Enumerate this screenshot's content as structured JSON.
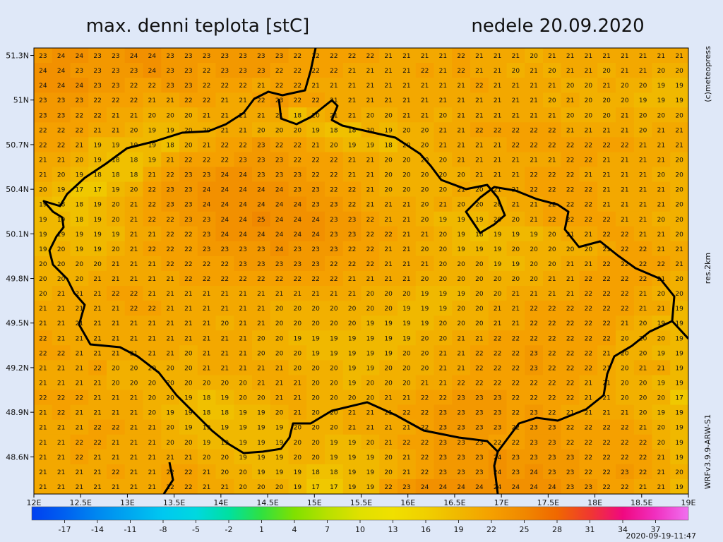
{
  "header": {
    "title": "max. denni teplota [stC]",
    "date": "nedele 20.09.2020"
  },
  "side_labels": {
    "copyright": "(c)meteopress",
    "resolution": "res.2km",
    "model": "WRFv3.9.9-ARW-S1"
  },
  "timestamp": "2020-09-19-11:47",
  "map": {
    "xlim": [
      12,
      19
    ],
    "ylim": [
      48.35,
      51.35
    ],
    "xticks": [
      {
        "value": 12,
        "label": "12E"
      },
      {
        "value": 12.5,
        "label": "12.5E"
      },
      {
        "value": 13,
        "label": "13E"
      },
      {
        "value": 13.5,
        "label": "13.5E"
      },
      {
        "value": 14,
        "label": "14E"
      },
      {
        "value": 14.5,
        "label": "14.5E"
      },
      {
        "value": 15,
        "label": "15E"
      },
      {
        "value": 15.5,
        "label": "15.5E"
      },
      {
        "value": 16,
        "label": "16E"
      },
      {
        "value": 16.5,
        "label": "16.5E"
      },
      {
        "value": 17,
        "label": "17E"
      },
      {
        "value": 17.5,
        "label": "17.5E"
      },
      {
        "value": 18,
        "label": "18E"
      },
      {
        "value": 18.5,
        "label": "18.5E"
      },
      {
        "value": 19,
        "label": "19E"
      }
    ],
    "yticks": [
      {
        "value": 51.3,
        "label": "51.3N"
      },
      {
        "value": 51,
        "label": "51N"
      },
      {
        "value": 50.7,
        "label": "50.7N"
      },
      {
        "value": 50.4,
        "label": "50.4N"
      },
      {
        "value": 50.1,
        "label": "50.1N"
      },
      {
        "value": 49.8,
        "label": "49.8N"
      },
      {
        "value": 49.5,
        "label": "49.5N"
      },
      {
        "value": 49.2,
        "label": "49.2N"
      },
      {
        "value": 48.9,
        "label": "48.9N"
      },
      {
        "value": 48.6,
        "label": "48.6N"
      }
    ],
    "grid": [
      [
        23,
        24,
        24,
        23,
        23,
        24,
        24,
        23,
        23,
        23,
        23,
        23,
        23,
        23,
        22,
        22,
        22,
        22,
        22,
        21,
        21,
        21,
        21,
        22,
        21,
        21,
        21,
        20,
        21,
        21,
        21,
        21,
        21,
        21,
        21,
        21
      ],
      [
        24,
        24,
        23,
        23,
        23,
        23,
        24,
        23,
        23,
        22,
        23,
        23,
        23,
        22,
        22,
        22,
        22,
        21,
        21,
        21,
        21,
        22,
        21,
        22,
        21,
        21,
        20,
        21,
        20,
        21,
        21,
        20,
        21,
        21,
        20,
        20
      ],
      [
        24,
        24,
        24,
        23,
        23,
        22,
        22,
        23,
        23,
        22,
        22,
        22,
        21,
        22,
        22,
        21,
        21,
        21,
        21,
        21,
        21,
        21,
        21,
        21,
        22,
        21,
        21,
        21,
        21,
        20,
        20,
        21,
        20,
        20,
        19,
        19
      ],
      [
        23,
        23,
        23,
        22,
        22,
        22,
        21,
        21,
        22,
        22,
        21,
        21,
        22,
        23,
        22,
        22,
        21,
        21,
        21,
        21,
        21,
        21,
        21,
        21,
        21,
        21,
        21,
        21,
        20,
        21,
        20,
        20,
        20,
        19,
        19,
        19
      ],
      [
        23,
        23,
        22,
        22,
        21,
        21,
        20,
        20,
        20,
        21,
        21,
        21,
        21,
        21,
        18,
        20,
        21,
        21,
        20,
        20,
        21,
        21,
        20,
        21,
        21,
        21,
        21,
        21,
        21,
        20,
        20,
        20,
        21,
        20,
        20,
        20
      ],
      [
        22,
        22,
        22,
        21,
        21,
        20,
        19,
        19,
        20,
        20,
        21,
        21,
        20,
        20,
        20,
        19,
        18,
        18,
        20,
        19,
        20,
        20,
        21,
        21,
        22,
        22,
        22,
        22,
        22,
        21,
        21,
        21,
        21,
        20,
        21,
        21
      ],
      [
        22,
        22,
        21,
        19,
        19,
        19,
        19,
        18,
        20,
        21,
        22,
        22,
        23,
        22,
        22,
        21,
        20,
        19,
        19,
        18,
        20,
        20,
        21,
        21,
        21,
        21,
        22,
        22,
        22,
        22,
        22,
        22,
        22,
        21,
        21,
        21
      ],
      [
        21,
        21,
        20,
        19,
        18,
        18,
        19,
        21,
        22,
        22,
        22,
        23,
        23,
        23,
        22,
        22,
        22,
        21,
        21,
        20,
        20,
        20,
        20,
        21,
        21,
        21,
        21,
        21,
        21,
        22,
        22,
        21,
        21,
        21,
        21,
        20
      ],
      [
        21,
        20,
        19,
        18,
        18,
        18,
        21,
        22,
        23,
        23,
        24,
        24,
        23,
        23,
        23,
        22,
        22,
        21,
        21,
        20,
        20,
        20,
        20,
        20,
        21,
        21,
        21,
        22,
        22,
        22,
        21,
        21,
        21,
        21,
        20,
        20
      ],
      [
        20,
        19,
        17,
        17,
        19,
        20,
        22,
        23,
        23,
        24,
        24,
        24,
        24,
        24,
        23,
        23,
        22,
        22,
        21,
        20,
        20,
        20,
        20,
        21,
        20,
        21,
        21,
        22,
        22,
        22,
        22,
        21,
        21,
        21,
        21,
        20
      ],
      [
        19,
        18,
        18,
        19,
        20,
        21,
        22,
        23,
        23,
        24,
        24,
        24,
        24,
        24,
        24,
        23,
        23,
        22,
        21,
        21,
        21,
        20,
        21,
        20,
        20,
        20,
        21,
        21,
        22,
        22,
        22,
        21,
        21,
        21,
        21,
        20
      ],
      [
        19,
        19,
        18,
        19,
        20,
        21,
        22,
        22,
        23,
        23,
        24,
        24,
        25,
        24,
        24,
        24,
        23,
        23,
        22,
        21,
        21,
        20,
        19,
        19,
        19,
        20,
        20,
        21,
        22,
        22,
        22,
        22,
        21,
        21,
        20,
        20
      ],
      [
        19,
        19,
        19,
        19,
        19,
        21,
        21,
        22,
        22,
        23,
        24,
        24,
        24,
        24,
        24,
        24,
        23,
        23,
        22,
        22,
        21,
        21,
        20,
        19,
        18,
        19,
        19,
        19,
        20,
        21,
        21,
        22,
        22,
        21,
        21,
        20
      ],
      [
        19,
        20,
        19,
        19,
        20,
        21,
        22,
        22,
        22,
        23,
        23,
        23,
        23,
        24,
        23,
        23,
        23,
        22,
        22,
        21,
        21,
        20,
        20,
        19,
        19,
        19,
        20,
        20,
        20,
        20,
        20,
        21,
        22,
        22,
        21,
        21
      ],
      [
        20,
        20,
        20,
        20,
        21,
        21,
        21,
        22,
        22,
        22,
        22,
        23,
        23,
        23,
        23,
        23,
        22,
        22,
        22,
        21,
        21,
        21,
        20,
        20,
        20,
        19,
        19,
        20,
        20,
        21,
        21,
        22,
        22,
        22,
        22,
        21
      ],
      [
        20,
        20,
        20,
        21,
        21,
        21,
        21,
        21,
        22,
        22,
        22,
        22,
        22,
        22,
        22,
        22,
        22,
        21,
        21,
        21,
        21,
        20,
        20,
        20,
        20,
        20,
        20,
        20,
        21,
        21,
        22,
        22,
        22,
        22,
        21,
        20
      ],
      [
        20,
        21,
        21,
        21,
        22,
        22,
        21,
        21,
        21,
        21,
        21,
        21,
        21,
        21,
        21,
        21,
        21,
        21,
        20,
        20,
        20,
        19,
        19,
        19,
        20,
        20,
        21,
        21,
        21,
        21,
        22,
        22,
        22,
        21,
        20,
        20
      ],
      [
        21,
        21,
        21,
        21,
        21,
        22,
        22,
        21,
        21,
        21,
        21,
        21,
        21,
        20,
        20,
        20,
        20,
        20,
        20,
        20,
        19,
        19,
        19,
        20,
        20,
        21,
        21,
        22,
        22,
        22,
        22,
        22,
        22,
        21,
        21,
        19
      ],
      [
        21,
        21,
        21,
        21,
        21,
        21,
        21,
        21,
        21,
        21,
        20,
        21,
        21,
        20,
        20,
        20,
        20,
        20,
        19,
        19,
        19,
        19,
        20,
        20,
        20,
        21,
        21,
        22,
        22,
        22,
        22,
        22,
        21,
        20,
        19,
        19
      ],
      [
        22,
        21,
        21,
        21,
        21,
        21,
        21,
        21,
        21,
        21,
        21,
        21,
        20,
        20,
        19,
        19,
        19,
        19,
        19,
        19,
        19,
        20,
        20,
        21,
        21,
        22,
        22,
        22,
        22,
        22,
        22,
        22,
        20,
        20,
        20,
        19
      ],
      [
        22,
        22,
        21,
        21,
        21,
        21,
        21,
        21,
        20,
        21,
        21,
        21,
        20,
        20,
        20,
        19,
        19,
        19,
        19,
        19,
        20,
        20,
        21,
        21,
        22,
        22,
        22,
        23,
        22,
        22,
        22,
        21,
        20,
        20,
        19,
        19
      ],
      [
        21,
        21,
        21,
        22,
        20,
        20,
        20,
        20,
        20,
        21,
        21,
        21,
        21,
        21,
        20,
        20,
        20,
        19,
        19,
        20,
        20,
        20,
        21,
        21,
        22,
        22,
        22,
        23,
        22,
        22,
        22,
        21,
        20,
        21,
        21,
        19
      ],
      [
        21,
        21,
        21,
        21,
        20,
        20,
        20,
        20,
        20,
        20,
        20,
        20,
        21,
        21,
        21,
        20,
        20,
        19,
        20,
        20,
        20,
        21,
        21,
        22,
        22,
        22,
        22,
        22,
        22,
        22,
        21,
        21,
        20,
        20,
        19,
        19
      ],
      [
        22,
        22,
        22,
        21,
        21,
        21,
        20,
        20,
        19,
        18,
        19,
        20,
        20,
        21,
        21,
        20,
        20,
        20,
        20,
        21,
        21,
        22,
        22,
        23,
        23,
        23,
        22,
        22,
        22,
        22,
        21,
        21,
        20,
        20,
        20,
        17
      ],
      [
        21,
        22,
        21,
        21,
        21,
        21,
        20,
        19,
        19,
        18,
        18,
        19,
        19,
        20,
        21,
        20,
        20,
        21,
        21,
        21,
        22,
        22,
        23,
        23,
        23,
        23,
        22,
        23,
        22,
        21,
        21,
        21,
        21,
        20,
        19,
        19
      ],
      [
        21,
        21,
        21,
        22,
        22,
        21,
        21,
        20,
        19,
        19,
        19,
        19,
        19,
        19,
        20,
        20,
        20,
        21,
        21,
        21,
        21,
        22,
        23,
        23,
        23,
        23,
        22,
        23,
        23,
        22,
        22,
        22,
        22,
        21,
        20,
        19
      ],
      [
        21,
        21,
        22,
        22,
        21,
        21,
        21,
        20,
        20,
        19,
        19,
        19,
        19,
        19,
        20,
        20,
        19,
        19,
        20,
        21,
        22,
        22,
        23,
        23,
        23,
        22,
        22,
        23,
        23,
        22,
        22,
        22,
        22,
        22,
        20,
        19
      ],
      [
        21,
        21,
        22,
        21,
        21,
        21,
        21,
        21,
        21,
        20,
        20,
        19,
        19,
        19,
        20,
        20,
        19,
        19,
        19,
        20,
        21,
        22,
        23,
        23,
        23,
        24,
        23,
        23,
        23,
        23,
        22,
        22,
        22,
        22,
        21,
        19
      ],
      [
        21,
        21,
        21,
        21,
        22,
        21,
        21,
        22,
        22,
        21,
        20,
        20,
        19,
        19,
        19,
        18,
        18,
        19,
        19,
        20,
        21,
        22,
        23,
        23,
        23,
        24,
        23,
        24,
        23,
        23,
        22,
        22,
        23,
        22,
        21,
        20
      ],
      [
        21,
        21,
        21,
        21,
        21,
        21,
        21,
        22,
        22,
        21,
        21,
        20,
        20,
        20,
        19,
        17,
        17,
        19,
        19,
        22,
        23,
        24,
        24,
        24,
        24,
        24,
        24,
        24,
        24,
        23,
        23,
        22,
        22,
        21,
        21,
        19
      ]
    ]
  },
  "colorbar": {
    "range": [
      -20,
      40
    ],
    "ticks": [
      -17,
      -14,
      -11,
      -8,
      -5,
      -2,
      1,
      4,
      7,
      10,
      13,
      16,
      19,
      22,
      25,
      28,
      31,
      34,
      37
    ],
    "colors": [
      "#0040f0",
      "#0060f0",
      "#0088f0",
      "#00a8f0",
      "#00c8f0",
      "#00d8e0",
      "#00e0a0",
      "#30e040",
      "#80e000",
      "#b8e000",
      "#e0e000",
      "#f0e000",
      "#f0d000",
      "#f0b800",
      "#f5a000",
      "#f08800",
      "#f06800",
      "#f03830",
      "#f00880",
      "#f030c0",
      "#f070f0"
    ]
  }
}
